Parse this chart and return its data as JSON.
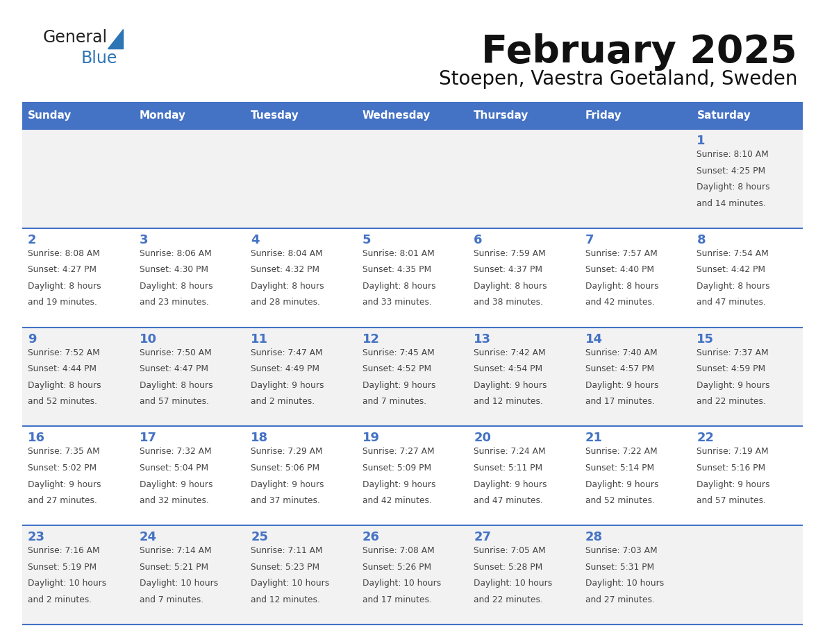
{
  "title": "February 2025",
  "subtitle": "Stoepen, Vaestra Goetaland, Sweden",
  "days_of_week": [
    "Sunday",
    "Monday",
    "Tuesday",
    "Wednesday",
    "Thursday",
    "Friday",
    "Saturday"
  ],
  "header_bg": "#4472C4",
  "header_text": "#FFFFFF",
  "row_bg_odd": "#F2F2F2",
  "row_bg_even": "#FFFFFF",
  "cell_border": "#4472C4",
  "day_number_color": "#4472C4",
  "info_text_color": "#444444",
  "logo_general_color": "#222222",
  "logo_blue_color": "#2E75B6",
  "calendar_data": [
    [
      {
        "day": "",
        "sunrise": "",
        "sunset": "",
        "daylight": ""
      },
      {
        "day": "",
        "sunrise": "",
        "sunset": "",
        "daylight": ""
      },
      {
        "day": "",
        "sunrise": "",
        "sunset": "",
        "daylight": ""
      },
      {
        "day": "",
        "sunrise": "",
        "sunset": "",
        "daylight": ""
      },
      {
        "day": "",
        "sunrise": "",
        "sunset": "",
        "daylight": ""
      },
      {
        "day": "",
        "sunrise": "",
        "sunset": "",
        "daylight": ""
      },
      {
        "day": "1",
        "sunrise": "8:10 AM",
        "sunset": "4:25 PM",
        "daylight": "8 hours and 14 minutes."
      }
    ],
    [
      {
        "day": "2",
        "sunrise": "8:08 AM",
        "sunset": "4:27 PM",
        "daylight": "8 hours and 19 minutes."
      },
      {
        "day": "3",
        "sunrise": "8:06 AM",
        "sunset": "4:30 PM",
        "daylight": "8 hours and 23 minutes."
      },
      {
        "day": "4",
        "sunrise": "8:04 AM",
        "sunset": "4:32 PM",
        "daylight": "8 hours and 28 minutes."
      },
      {
        "day": "5",
        "sunrise": "8:01 AM",
        "sunset": "4:35 PM",
        "daylight": "8 hours and 33 minutes."
      },
      {
        "day": "6",
        "sunrise": "7:59 AM",
        "sunset": "4:37 PM",
        "daylight": "8 hours and 38 minutes."
      },
      {
        "day": "7",
        "sunrise": "7:57 AM",
        "sunset": "4:40 PM",
        "daylight": "8 hours and 42 minutes."
      },
      {
        "day": "8",
        "sunrise": "7:54 AM",
        "sunset": "4:42 PM",
        "daylight": "8 hours and 47 minutes."
      }
    ],
    [
      {
        "day": "9",
        "sunrise": "7:52 AM",
        "sunset": "4:44 PM",
        "daylight": "8 hours and 52 minutes."
      },
      {
        "day": "10",
        "sunrise": "7:50 AM",
        "sunset": "4:47 PM",
        "daylight": "8 hours and 57 minutes."
      },
      {
        "day": "11",
        "sunrise": "7:47 AM",
        "sunset": "4:49 PM",
        "daylight": "9 hours and 2 minutes."
      },
      {
        "day": "12",
        "sunrise": "7:45 AM",
        "sunset": "4:52 PM",
        "daylight": "9 hours and 7 minutes."
      },
      {
        "day": "13",
        "sunrise": "7:42 AM",
        "sunset": "4:54 PM",
        "daylight": "9 hours and 12 minutes."
      },
      {
        "day": "14",
        "sunrise": "7:40 AM",
        "sunset": "4:57 PM",
        "daylight": "9 hours and 17 minutes."
      },
      {
        "day": "15",
        "sunrise": "7:37 AM",
        "sunset": "4:59 PM",
        "daylight": "9 hours and 22 minutes."
      }
    ],
    [
      {
        "day": "16",
        "sunrise": "7:35 AM",
        "sunset": "5:02 PM",
        "daylight": "9 hours and 27 minutes."
      },
      {
        "day": "17",
        "sunrise": "7:32 AM",
        "sunset": "5:04 PM",
        "daylight": "9 hours and 32 minutes."
      },
      {
        "day": "18",
        "sunrise": "7:29 AM",
        "sunset": "5:06 PM",
        "daylight": "9 hours and 37 minutes."
      },
      {
        "day": "19",
        "sunrise": "7:27 AM",
        "sunset": "5:09 PM",
        "daylight": "9 hours and 42 minutes."
      },
      {
        "day": "20",
        "sunrise": "7:24 AM",
        "sunset": "5:11 PM",
        "daylight": "9 hours and 47 minutes."
      },
      {
        "day": "21",
        "sunrise": "7:22 AM",
        "sunset": "5:14 PM",
        "daylight": "9 hours and 52 minutes."
      },
      {
        "day": "22",
        "sunrise": "7:19 AM",
        "sunset": "5:16 PM",
        "daylight": "9 hours and 57 minutes."
      }
    ],
    [
      {
        "day": "23",
        "sunrise": "7:16 AM",
        "sunset": "5:19 PM",
        "daylight": "10 hours and 2 minutes."
      },
      {
        "day": "24",
        "sunrise": "7:14 AM",
        "sunset": "5:21 PM",
        "daylight": "10 hours and 7 minutes."
      },
      {
        "day": "25",
        "sunrise": "7:11 AM",
        "sunset": "5:23 PM",
        "daylight": "10 hours and 12 minutes."
      },
      {
        "day": "26",
        "sunrise": "7:08 AM",
        "sunset": "5:26 PM",
        "daylight": "10 hours and 17 minutes."
      },
      {
        "day": "27",
        "sunrise": "7:05 AM",
        "sunset": "5:28 PM",
        "daylight": "10 hours and 22 minutes."
      },
      {
        "day": "28",
        "sunrise": "7:03 AM",
        "sunset": "5:31 PM",
        "daylight": "10 hours and 27 minutes."
      },
      {
        "day": "",
        "sunrise": "",
        "sunset": "",
        "daylight": ""
      }
    ]
  ]
}
